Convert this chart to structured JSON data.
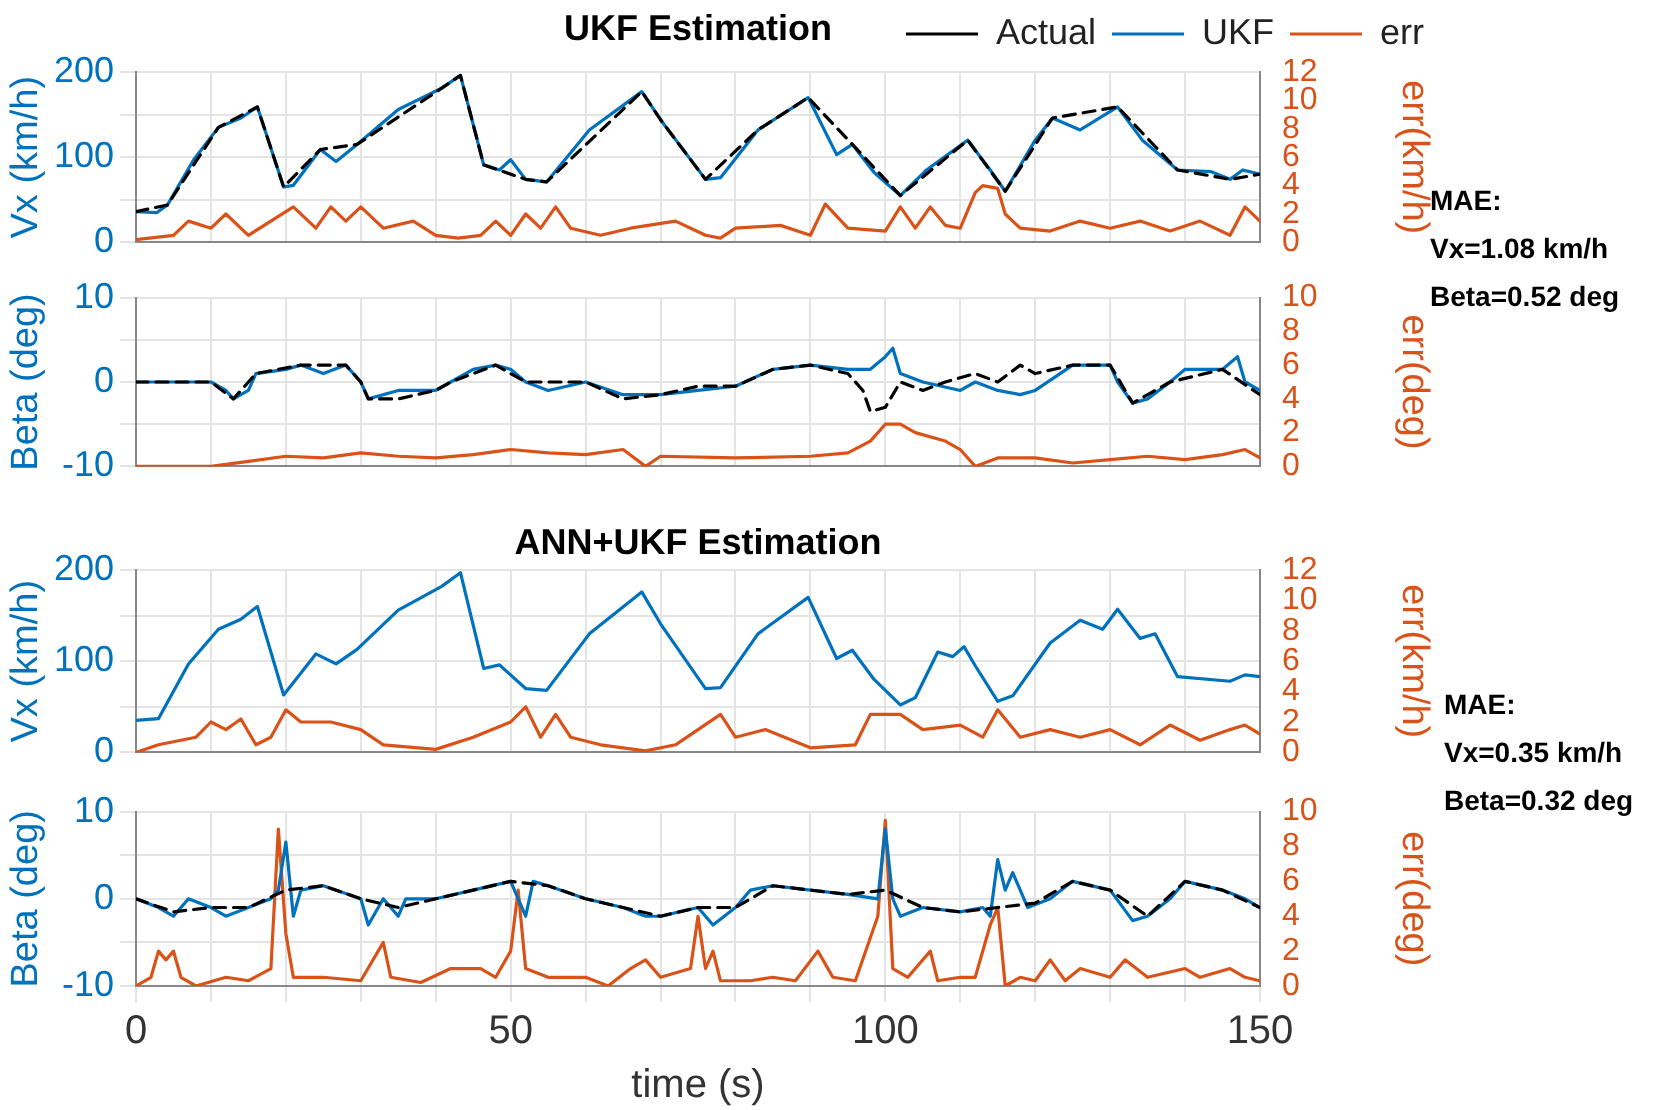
{
  "chart_data": [
    {
      "type": "line",
      "title": "UKF Estimation",
      "ylabel": "Vx (km/h)",
      "y2label": "err(km/h)",
      "legend": "top right",
      "grid": true,
      "marker": "none",
      "tick_labels": "y",
      "xlim": [
        0,
        150
      ],
      "xticks": [
        0,
        {
          "value": 10,
          "label": null
        },
        {
          "value": 20,
          "label": null
        },
        {
          "value": 30,
          "label": null
        },
        {
          "value": 40,
          "label": null
        },
        {
          "value": 50,
          "label": null
        },
        {
          "value": 60,
          "label": null
        },
        {
          "value": 70,
          "label": null
        },
        {
          "value": 80,
          "label": null
        },
        {
          "value": 90,
          "label": null
        },
        {
          "value": 100,
          "label": null
        },
        {
          "value": 110,
          "label": null
        },
        {
          "value": 120,
          "label": null
        },
        {
          "value": 130,
          "label": null
        },
        {
          "value": 140,
          "label": null
        },
        {
          "value": 150,
          "label": null
        }
      ],
      "ylim": [
        0,
        200
      ],
      "yticks": [
        0,
        {
          "value": 50,
          "label": null
        },
        100,
        {
          "value": 150,
          "label": null
        },
        200
      ],
      "y2lim": [
        0,
        12
      ],
      "y2ticks": [
        0,
        2,
        4,
        6,
        8,
        10,
        12
      ],
      "annotations": [
        "MAE:",
        "Vx=1.08 km/h",
        "Beta=0.52 deg"
      ],
      "series": [
        {
          "name": "Actual",
          "color": "#000000",
          "line_style": "dashed",
          "x": [
            0,
            4.2,
            11,
            16.2,
            19.7,
            24.6,
            29.5,
            40.8,
            43.3,
            46.4,
            52,
            54.8,
            67.5,
            70,
            76,
            83,
            89.7,
            95.6,
            102,
            111,
            116,
            122.3,
            131,
            139,
            146,
            150
          ],
          "values": [
            36,
            44,
            135,
            159,
            65,
            109,
            115,
            181,
            196,
            91,
            74,
            71,
            177,
            144,
            74,
            132,
            170,
            115,
            55,
            120,
            60,
            146,
            159,
            85,
            74,
            80
          ]
        },
        {
          "name": "UKF",
          "color": "#0072bd",
          "x": [
            0,
            2.8,
            4.2,
            7.7,
            11,
            14,
            16.2,
            19.7,
            21,
            24.6,
            26.7,
            29.5,
            35,
            40.8,
            43.3,
            46.4,
            48.5,
            50,
            52,
            54.8,
            60.5,
            67.5,
            70,
            76,
            78,
            83,
            89.7,
            93.5,
            95.6,
            98.5,
            102,
            105.5,
            111,
            114,
            116,
            120,
            122.3,
            126,
            131,
            134.3,
            139,
            143.5,
            146,
            147.7,
            150
          ],
          "values": [
            36,
            35,
            44,
            97,
            135,
            146,
            159,
            65,
            67,
            109,
            95,
            115,
            156,
            181,
            196,
            91,
            85,
            97,
            74,
            71,
            132,
            177,
            144,
            74,
            76,
            132,
            170,
            103,
            115,
            82,
            55,
            85,
            120,
            85,
            60,
            120,
            146,
            132,
            159,
            120,
            85,
            83,
            74,
            85,
            80
          ]
        },
        {
          "name": "err",
          "color": "#d95319",
          "axis": "y2",
          "x": [
            0,
            5,
            7,
            10,
            12,
            15,
            18,
            21,
            24,
            26,
            28,
            30,
            33,
            37,
            40,
            43,
            46,
            48,
            50,
            52,
            54,
            56,
            58,
            62,
            66,
            72,
            76,
            78,
            80,
            86,
            90,
            92,
            95,
            100,
            102,
            104,
            106,
            108,
            110,
            112,
            113,
            115,
            116,
            118,
            122,
            126,
            130,
            134,
            138,
            142,
            146,
            148,
            150
          ],
          "values": [
            0.2,
            0.5,
            1.5,
            1,
            2,
            0.5,
            1.5,
            2.5,
            1,
            2.5,
            1.5,
            2.5,
            1,
            1.5,
            0.5,
            0.3,
            0.5,
            1.5,
            0.5,
            2,
            1,
            2.5,
            1,
            0.5,
            1,
            1.5,
            0.5,
            0.3,
            1,
            1.2,
            0.5,
            2.7,
            1,
            0.8,
            2.5,
            1,
            2.5,
            1.2,
            1,
            3.5,
            4,
            3.8,
            2,
            1,
            0.8,
            1.5,
            1,
            1.5,
            0.8,
            1.5,
            0.5,
            2.5,
            1.5
          ]
        }
      ]
    },
    {
      "type": "line",
      "ylabel": "Beta (deg)",
      "y2label": "err(deg)",
      "grid": true,
      "marker": "none",
      "tick_labels": "y",
      "xlim": [
        0,
        150
      ],
      "xticks": [
        0,
        {
          "value": 10,
          "label": null
        },
        {
          "value": 20,
          "label": null
        },
        {
          "value": 30,
          "label": null
        },
        {
          "value": 40,
          "label": null
        },
        {
          "value": 50,
          "label": null
        },
        {
          "value": 60,
          "label": null
        },
        {
          "value": 70,
          "label": null
        },
        {
          "value": 80,
          "label": null
        },
        {
          "value": 90,
          "label": null
        },
        {
          "value": 100,
          "label": null
        },
        {
          "value": 110,
          "label": null
        },
        {
          "value": 120,
          "label": null
        },
        {
          "value": 130,
          "label": null
        },
        {
          "value": 140,
          "label": null
        },
        {
          "value": 150,
          "label": null
        }
      ],
      "ylim": [
        -10,
        10
      ],
      "yticks": [
        -10,
        {
          "value": -5,
          "label": null
        },
        0,
        {
          "value": 5,
          "label": null
        },
        10
      ],
      "y2lim": [
        0,
        10
      ],
      "y2ticks": [
        0,
        2,
        4,
        6,
        8,
        10
      ],
      "series": [
        {
          "color": "#0072bd",
          "x": [
            0,
            10,
            12,
            13,
            15,
            16,
            20,
            22,
            25,
            28,
            30,
            31,
            35,
            40,
            42,
            45,
            48,
            50,
            52,
            55,
            60,
            65,
            70,
            75,
            80,
            85,
            90,
            95,
            98,
            100,
            101,
            102,
            105,
            110,
            112,
            115,
            118,
            120,
            125,
            130,
            131,
            133,
            135,
            138,
            140,
            145,
            147,
            148,
            150
          ],
          "values": [
            0,
            0,
            -1,
            -2,
            -1,
            1,
            1.5,
            2,
            1,
            2,
            0,
            -2,
            -1,
            -1,
            0,
            1.5,
            2,
            1.5,
            0,
            -1,
            0,
            -1.5,
            -1.5,
            -1,
            -0.5,
            1.5,
            2,
            1.5,
            1.5,
            3,
            4,
            1,
            0,
            -1,
            0,
            -1,
            -1.5,
            -1,
            2,
            2,
            0,
            -2.5,
            -2,
            0,
            1.5,
            1.5,
            3,
            0,
            -1
          ]
        },
        {
          "color": "#000000",
          "line_style": "dashed",
          "x": [
            0,
            10,
            13,
            16,
            22,
            28,
            30,
            31,
            35,
            40,
            42,
            48,
            52,
            60,
            65,
            70,
            75,
            80,
            85,
            90,
            95,
            97,
            98,
            100,
            102,
            105,
            108,
            112,
            115,
            118,
            120,
            125,
            130,
            133,
            138,
            145,
            150
          ],
          "values": [
            0,
            0,
            -2,
            1,
            2,
            2,
            0,
            -2,
            -2,
            -1,
            0,
            2,
            0,
            0,
            -2,
            -1.5,
            -0.5,
            -0.5,
            1.5,
            2,
            1,
            -1,
            -3.5,
            -3,
            0,
            -1,
            0,
            1,
            0,
            2,
            1,
            2,
            2,
            -2.5,
            0,
            1.5,
            -1.5
          ]
        },
        {
          "color": "#d95319",
          "axis": "y2",
          "x": [
            0,
            10,
            15,
            20,
            25,
            30,
            35,
            40,
            45,
            50,
            55,
            60,
            65,
            68,
            70,
            80,
            90,
            95,
            98,
            100,
            102,
            104,
            108,
            110,
            112,
            115,
            120,
            125,
            130,
            135,
            140,
            145,
            148,
            150
          ],
          "values": [
            0,
            0,
            0.3,
            0.6,
            0.5,
            0.8,
            0.6,
            0.5,
            0.7,
            1,
            0.8,
            0.7,
            1,
            0,
            0.6,
            0.5,
            0.6,
            0.8,
            1.5,
            2.5,
            2.5,
            2,
            1.5,
            1,
            0,
            0.5,
            0.5,
            0.2,
            0.4,
            0.6,
            0.4,
            0.7,
            1,
            0.5
          ]
        }
      ]
    },
    {
      "type": "line",
      "title": "ANN+UKF Estimation",
      "ylabel": "Vx (km/h)",
      "y2label": "err(km/h)",
      "grid": true,
      "marker": "none",
      "tick_labels": "y",
      "xlim": [
        0,
        150
      ],
      "xticks": [
        0,
        {
          "value": 10,
          "label": null
        },
        {
          "value": 20,
          "label": null
        },
        {
          "value": 30,
          "label": null
        },
        {
          "value": 40,
          "label": null
        },
        {
          "value": 50,
          "label": null
        },
        {
          "value": 60,
          "label": null
        },
        {
          "value": 70,
          "label": null
        },
        {
          "value": 80,
          "label": null
        },
        {
          "value": 90,
          "label": null
        },
        {
          "value": 100,
          "label": null
        },
        {
          "value": 110,
          "label": null
        },
        {
          "value": 120,
          "label": null
        },
        {
          "value": 130,
          "label": null
        },
        {
          "value": 140,
          "label": null
        },
        {
          "value": 150,
          "label": null
        }
      ],
      "ylim": [
        0,
        200
      ],
      "yticks": [
        0,
        {
          "value": 50,
          "label": null
        },
        100,
        {
          "value": 150,
          "label": null
        },
        200
      ],
      "y2lim": [
        0,
        12
      ],
      "y2ticks": [
        0,
        2,
        4,
        6,
        8,
        10,
        12
      ],
      "annotations": [
        "MAE:",
        "Vx=0.35 km/h",
        "Beta=0.32 deg"
      ],
      "series": [
        {
          "color": "#0072bd",
          "x": [
            0,
            3,
            7,
            11,
            14,
            16.2,
            19.7,
            24,
            26.7,
            29.5,
            35,
            40.8,
            43.3,
            46.4,
            48.5,
            52,
            54.8,
            60.5,
            67.5,
            70,
            76,
            78,
            83,
            89.7,
            93.5,
            95.6,
            98.5,
            102,
            104,
            107,
            109,
            110.5,
            112,
            115,
            117,
            122,
            126,
            129,
            131,
            134,
            136,
            139,
            146,
            148,
            150
          ],
          "values": [
            35,
            37,
            97,
            135,
            146,
            160,
            63,
            108,
            97,
            113,
            156,
            182,
            197,
            92,
            96,
            70,
            68,
            130,
            176,
            141,
            70,
            71,
            130,
            170,
            103,
            112,
            80,
            52,
            60,
            110,
            105,
            116,
            95,
            56,
            62,
            120,
            145,
            135,
            157,
            125,
            130,
            83,
            78,
            85,
            83
          ]
        },
        {
          "color": "#d95319",
          "axis": "y2",
          "x": [
            0,
            3,
            8,
            10,
            12,
            14,
            16,
            18,
            20,
            22,
            26,
            30,
            33,
            40,
            45,
            50,
            52,
            54,
            56,
            58,
            62,
            68,
            72,
            75,
            78,
            80,
            84,
            90,
            96,
            98,
            102,
            105,
            110,
            113,
            115,
            118,
            122,
            126,
            130,
            134,
            138,
            142,
            146,
            148,
            150
          ],
          "values": [
            0,
            0.5,
            1,
            2,
            1.5,
            2.2,
            0.5,
            1,
            2.8,
            2,
            2,
            1.5,
            0.5,
            0.2,
            1,
            2,
            3,
            1,
            2.5,
            1,
            0.5,
            0.1,
            0.5,
            1.5,
            2.5,
            1,
            1.5,
            0.3,
            0.5,
            2.5,
            2.5,
            1.5,
            1.8,
            1,
            2.8,
            1,
            1.5,
            1,
            1.5,
            0.5,
            1.8,
            0.8,
            1.5,
            1.8,
            1.2
          ]
        }
      ]
    },
    {
      "type": "line",
      "xlabel": "time (s)",
      "ylabel": "Beta (deg)",
      "y2label": "err(deg)",
      "grid": true,
      "marker": "none",
      "xlim": [
        0,
        150
      ],
      "xticks": [
        0,
        {
          "value": 10,
          "label": null
        },
        {
          "value": 20,
          "label": null
        },
        {
          "value": 30,
          "label": null
        },
        {
          "value": 40,
          "label": null
        },
        50,
        {
          "value": 60,
          "label": null
        },
        {
          "value": 70,
          "label": null
        },
        {
          "value": 80,
          "label": null
        },
        {
          "value": 90,
          "label": null
        },
        100,
        {
          "value": 110,
          "label": null
        },
        {
          "value": 120,
          "label": null
        },
        {
          "value": 130,
          "label": null
        },
        {
          "value": 140,
          "label": null
        },
        150
      ],
      "ylim": [
        -10,
        10
      ],
      "yticks": [
        -10,
        {
          "value": -5,
          "label": null
        },
        0,
        {
          "value": 5,
          "label": null
        },
        10
      ],
      "y2lim": [
        0,
        10
      ],
      "y2ticks": [
        0,
        2,
        4,
        6,
        8,
        10
      ],
      "series": [
        {
          "color": "#0072bd",
          "x": [
            0,
            3,
            5,
            7,
            10,
            12,
            15,
            18,
            19,
            20,
            21,
            22,
            25,
            30,
            31,
            33,
            35,
            36,
            40,
            45,
            50,
            52,
            53,
            55,
            60,
            65,
            68,
            70,
            75,
            77,
            80,
            82,
            85,
            90,
            95,
            99,
            100,
            101,
            102,
            105,
            110,
            113,
            114,
            115,
            116,
            117,
            119,
            122,
            125,
            130,
            133,
            135,
            138,
            140,
            145,
            148,
            150
          ],
          "values": [
            0,
            -1,
            -2,
            0,
            -1,
            -2,
            -1,
            0,
            1,
            6.5,
            -2,
            1,
            1.5,
            0,
            -3,
            0,
            -2,
            0,
            0,
            1,
            2,
            -2,
            2,
            1.5,
            0,
            -1,
            -2,
            -2,
            -1,
            -3,
            -1,
            1,
            1.5,
            1,
            0.5,
            0,
            8,
            0,
            -2,
            -1,
            -1.5,
            -1,
            -2,
            4.5,
            1,
            3,
            -1,
            0,
            2,
            1,
            -2.5,
            -2,
            0,
            2,
            1,
            0,
            -1
          ]
        },
        {
          "color": "#000000",
          "line_style": "dashed",
          "x": [
            0,
            5,
            10,
            15,
            20,
            25,
            30,
            35,
            40,
            45,
            50,
            55,
            60,
            65,
            70,
            75,
            80,
            85,
            90,
            95,
            100,
            105,
            110,
            115,
            120,
            125,
            130,
            135,
            140,
            145,
            150
          ],
          "values": [
            0,
            -1.5,
            -1,
            -1,
            1,
            1.5,
            0,
            -1,
            0,
            1,
            2,
            1.5,
            0,
            -1,
            -2,
            -1,
            -1,
            1.5,
            1,
            0.5,
            1,
            -1,
            -1.5,
            -1,
            -0.5,
            2,
            1,
            -2,
            2,
            1,
            -1
          ]
        },
        {
          "color": "#d95319",
          "axis": "y2",
          "x": [
            0,
            2,
            3,
            4,
            5,
            6,
            8,
            12,
            15,
            18,
            19,
            20,
            21,
            25,
            30,
            33,
            34,
            38,
            42,
            46,
            48,
            50,
            51,
            52,
            55,
            60,
            63,
            66,
            68,
            70,
            74,
            75,
            76,
            77,
            78,
            82,
            85,
            88,
            91,
            93,
            96,
            99,
            100,
            101,
            103,
            106,
            107,
            110,
            112,
            114,
            115,
            116,
            118,
            120,
            122,
            124,
            126,
            130,
            132,
            135,
            140,
            142,
            146,
            148,
            150
          ],
          "values": [
            0,
            0.5,
            2,
            1.5,
            2,
            0.5,
            0,
            0.5,
            0.3,
            1,
            9,
            3,
            0.5,
            0.5,
            0.3,
            2.5,
            0.5,
            0.2,
            1,
            1,
            0.5,
            2,
            5.5,
            1,
            0.5,
            0.5,
            0,
            1,
            1.5,
            0.5,
            1,
            4,
            1,
            2,
            0.3,
            0.3,
            0.5,
            0.3,
            2,
            0.5,
            0.3,
            4,
            9.5,
            1,
            0.5,
            2,
            0.3,
            0.5,
            0.5,
            3.5,
            4.5,
            0,
            0.5,
            0.3,
            1.5,
            0.3,
            1,
            0.5,
            1.5,
            0.5,
            1,
            0.5,
            1,
            0.5,
            0.3
          ]
        }
      ]
    }
  ]
}
